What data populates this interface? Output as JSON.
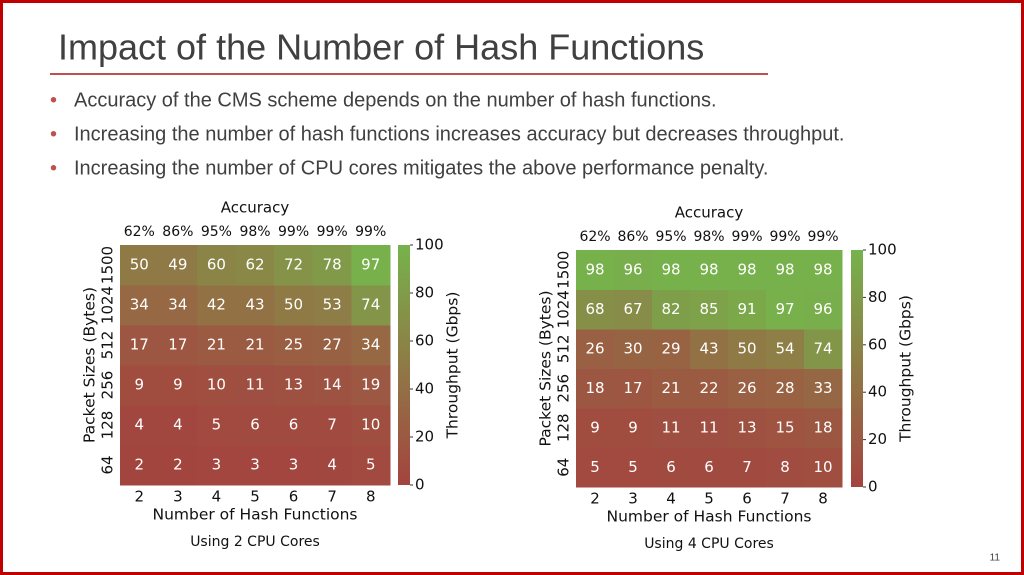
{
  "title": "Impact of the Number of Hash Functions",
  "bullets": [
    "Accuracy of the CMS scheme depends on the number of hash functions.",
    "Increasing the number of hash functions increases accuracy but decreases throughput.",
    "Increasing the number of CPU cores mitigates the above performance penalty."
  ],
  "page_number": "11",
  "chart_data": [
    {
      "type": "heatmap",
      "title": "Accuracy",
      "caption": "Using 2 CPU Cores",
      "x_label": "Number of Hash Functions",
      "y_label": "Packet Sizes (Bytes)",
      "categories": [
        "2",
        "3",
        "4",
        "5",
        "6",
        "7",
        "8"
      ],
      "top_categories": [
        "62%",
        "86%",
        "95%",
        "98%",
        "99%",
        "99%",
        "99%"
      ],
      "rows": [
        "64",
        "128",
        "256",
        "512",
        "1024",
        "1500"
      ],
      "values": [
        [
          2,
          2,
          3,
          3,
          3,
          4,
          5
        ],
        [
          4,
          4,
          5,
          6,
          6,
          7,
          10
        ],
        [
          9,
          9,
          10,
          11,
          13,
          14,
          19
        ],
        [
          17,
          17,
          21,
          21,
          25,
          27,
          34
        ],
        [
          34,
          34,
          42,
          43,
          50,
          53,
          74
        ],
        [
          50,
          49,
          60,
          62,
          72,
          78,
          97
        ]
      ],
      "colorbar_label": "Throughput (Gbps)",
      "clim": [
        0,
        100
      ],
      "cticks": [
        0,
        20,
        40,
        60,
        80,
        100
      ],
      "colormap": [
        "#a4433f",
        "#8f7a46",
        "#76b34b"
      ]
    },
    {
      "type": "heatmap",
      "title": "Accuracy",
      "caption": "Using 4 CPU Cores",
      "x_label": "Number of Hash Functions",
      "y_label": "Packet Sizes (Bytes)",
      "categories": [
        "2",
        "3",
        "4",
        "5",
        "6",
        "7",
        "8"
      ],
      "top_categories": [
        "62%",
        "86%",
        "95%",
        "98%",
        "99%",
        "99%",
        "99%"
      ],
      "rows": [
        "64",
        "128",
        "256",
        "512",
        "1024",
        "1500"
      ],
      "values": [
        [
          5,
          5,
          6,
          6,
          7,
          8,
          10
        ],
        [
          9,
          9,
          11,
          11,
          13,
          15,
          18
        ],
        [
          18,
          17,
          21,
          22,
          26,
          28,
          33
        ],
        [
          26,
          30,
          29,
          43,
          50,
          54,
          74
        ],
        [
          68,
          67,
          82,
          85,
          91,
          97,
          96
        ],
        [
          98,
          96,
          98,
          98,
          98,
          98,
          98
        ]
      ],
      "colorbar_label": "Throughput (Gbps)",
      "clim": [
        0,
        100
      ],
      "cticks": [
        0,
        20,
        40,
        60,
        80,
        100
      ],
      "colormap": [
        "#a4433f",
        "#8f7a46",
        "#76b34b"
      ]
    }
  ]
}
